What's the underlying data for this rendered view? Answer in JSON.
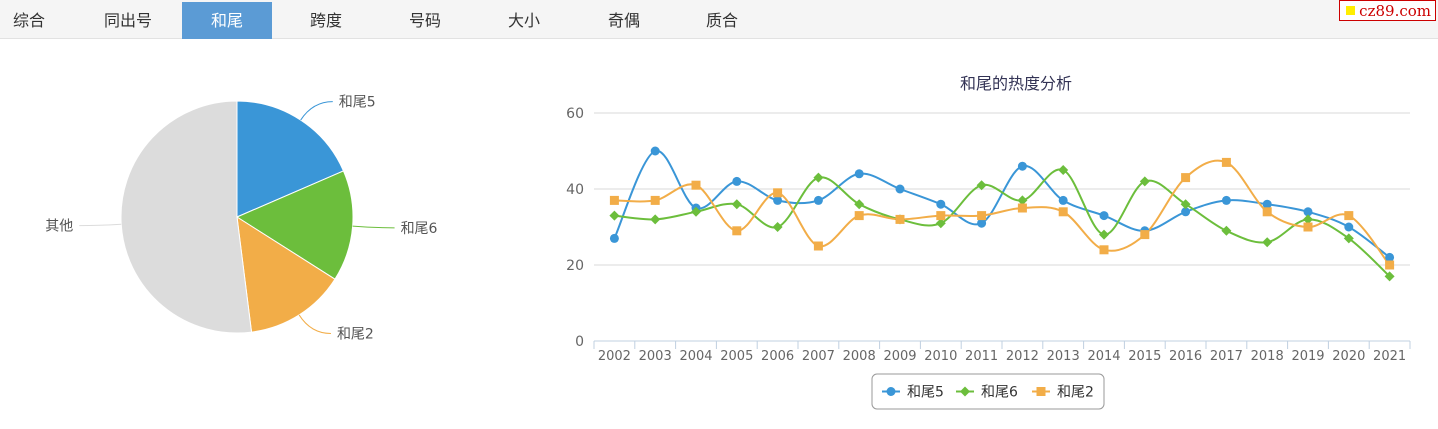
{
  "tabs": [
    {
      "label": "综合",
      "active": false
    },
    {
      "label": "同出号",
      "active": false
    },
    {
      "label": "和尾",
      "active": true
    },
    {
      "label": "跨度",
      "active": false
    },
    {
      "label": "号码",
      "active": false
    },
    {
      "label": "大小",
      "active": false
    },
    {
      "label": "奇偶",
      "active": false
    },
    {
      "label": "质合",
      "active": false
    }
  ],
  "logo": {
    "text": "cz89.com"
  },
  "colors": {
    "accent": "#5b9bd5",
    "hewei5": "#3a96d7",
    "hewei6": "#6cbe3c",
    "hewei2": "#f2ad48",
    "other": "#dcdcdc"
  },
  "chart_data": [
    {
      "type": "pie",
      "title": "",
      "slices": [
        {
          "label": "和尾5",
          "value": 18.5
        },
        {
          "label": "和尾6",
          "value": 15.5
        },
        {
          "label": "和尾2",
          "value": 14.0
        },
        {
          "label": "其他",
          "value": 52.0
        }
      ]
    },
    {
      "type": "line",
      "title": "和尾的热度分析",
      "xlabel": "",
      "ylabel": "",
      "ylim": [
        0,
        60
      ],
      "yticks": [
        0,
        20,
        40,
        60
      ],
      "grid": true,
      "legend": "bottom-center",
      "smooth": true,
      "x": [
        "2002",
        "2003",
        "2004",
        "2005",
        "2006",
        "2007",
        "2008",
        "2009",
        "2010",
        "2011",
        "2012",
        "2013",
        "2014",
        "2015",
        "2016",
        "2017",
        "2018",
        "2019",
        "2020",
        "2021"
      ],
      "series": [
        {
          "name": "和尾5",
          "marker": "circle",
          "values": [
            27,
            50,
            35,
            42,
            37,
            37,
            44,
            40,
            36,
            31,
            46,
            37,
            33,
            29,
            34,
            37,
            36,
            34,
            30,
            22
          ]
        },
        {
          "name": "和尾6",
          "marker": "diamond",
          "values": [
            33,
            32,
            34,
            36,
            30,
            43,
            36,
            32,
            31,
            41,
            37,
            45,
            28,
            42,
            36,
            29,
            26,
            32,
            27,
            17
          ]
        },
        {
          "name": "和尾2",
          "marker": "square",
          "values": [
            37,
            37,
            41,
            29,
            39,
            25,
            33,
            32,
            33,
            33,
            35,
            34,
            24,
            28,
            43,
            47,
            34,
            30,
            33,
            20
          ]
        }
      ]
    }
  ]
}
